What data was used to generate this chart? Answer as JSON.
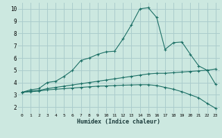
{
  "xlabel": "Humidex (Indice chaleur)",
  "background_color": "#cce8e0",
  "grid_color": "#aacccc",
  "line_color": "#1a6e64",
  "xlim": [
    -0.5,
    23.5
  ],
  "ylim": [
    1.5,
    10.5
  ],
  "xticks": [
    0,
    1,
    2,
    3,
    4,
    5,
    6,
    7,
    8,
    9,
    10,
    11,
    12,
    13,
    14,
    15,
    16,
    17,
    18,
    19,
    20,
    21,
    22,
    23
  ],
  "yticks": [
    2,
    3,
    4,
    5,
    6,
    7,
    8,
    9,
    10
  ],
  "series1_x": [
    0,
    1,
    2,
    3,
    4,
    5,
    6,
    7,
    8,
    9,
    10,
    11,
    12,
    13,
    14,
    15,
    16,
    17,
    18,
    19,
    20,
    21,
    22,
    23
  ],
  "series1_y": [
    3.2,
    3.4,
    3.5,
    4.0,
    4.1,
    4.5,
    5.0,
    5.8,
    6.0,
    6.3,
    6.5,
    6.55,
    7.55,
    8.7,
    10.0,
    10.1,
    9.3,
    6.7,
    7.25,
    7.3,
    6.3,
    5.35,
    5.0,
    3.85
  ],
  "series2_x": [
    0,
    1,
    2,
    3,
    4,
    5,
    6,
    7,
    8,
    9,
    10,
    11,
    12,
    13,
    14,
    15,
    16,
    17,
    18,
    19,
    20,
    21,
    22,
    23
  ],
  "series2_y": [
    3.2,
    3.3,
    3.35,
    3.5,
    3.6,
    3.7,
    3.8,
    3.9,
    4.0,
    4.1,
    4.2,
    4.3,
    4.4,
    4.5,
    4.6,
    4.7,
    4.75,
    4.75,
    4.8,
    4.85,
    4.9,
    4.95,
    5.0,
    5.1
  ],
  "series3_x": [
    0,
    1,
    2,
    3,
    4,
    5,
    6,
    7,
    8,
    9,
    10,
    11,
    12,
    13,
    14,
    15,
    16,
    17,
    18,
    19,
    20,
    21,
    22,
    23
  ],
  "series3_y": [
    3.2,
    3.25,
    3.3,
    3.4,
    3.45,
    3.5,
    3.55,
    3.6,
    3.65,
    3.7,
    3.72,
    3.75,
    3.78,
    3.8,
    3.82,
    3.82,
    3.75,
    3.6,
    3.45,
    3.25,
    3.0,
    2.75,
    2.3,
    1.9
  ]
}
